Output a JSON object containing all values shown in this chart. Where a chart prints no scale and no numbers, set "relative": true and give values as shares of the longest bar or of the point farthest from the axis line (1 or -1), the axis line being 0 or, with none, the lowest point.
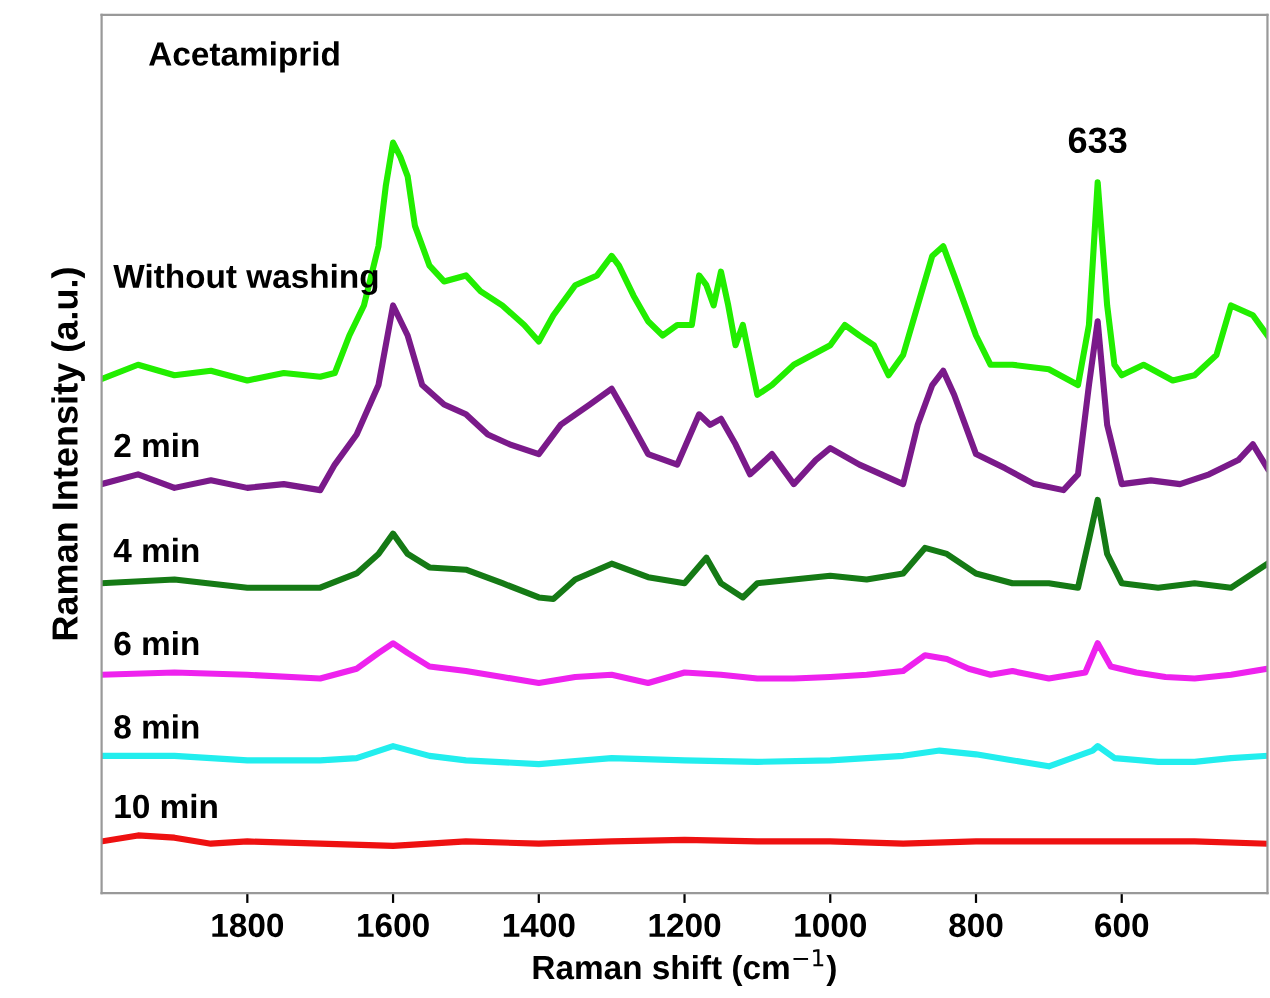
{
  "chart_data": {
    "type": "line",
    "relative": true,
    "xlabel": "Raman shift (cm$^{−1}$)",
    "ylabel": "Raman Intensity (a.u.)",
    "xlim": [
      2000,
      400
    ],
    "xticks": [
      1800,
      1600,
      1400,
      1200,
      1000,
      800,
      600
    ],
    "grid": false,
    "legend": false,
    "marker": "none",
    "line_style": "solid",
    "annotations": [
      "Acetamiprid",
      {
        "text": "633",
        "x": 633,
        "y": 0.947
      }
    ],
    "series": [
      {
        "name": "Without washing",
        "color": "#22ee00",
        "x": [
          2000,
          1950,
          1900,
          1850,
          1800,
          1750,
          1700,
          1680,
          1660,
          1640,
          1620,
          1610,
          1600,
          1590,
          1580,
          1570,
          1550,
          1530,
          1500,
          1480,
          1450,
          1420,
          1400,
          1380,
          1350,
          1320,
          1300,
          1290,
          1270,
          1250,
          1230,
          1210,
          1190,
          1180,
          1170,
          1160,
          1150,
          1140,
          1130,
          1120,
          1100,
          1080,
          1050,
          1000,
          980,
          960,
          940,
          920,
          900,
          880,
          860,
          845,
          830,
          800,
          780,
          750,
          700,
          660,
          645,
          633,
          620,
          610,
          600,
          570,
          530,
          500,
          470,
          450,
          420,
          400
        ],
        "values": [
          0.685,
          0.704,
          0.69,
          0.696,
          0.683,
          0.693,
          0.688,
          0.693,
          0.743,
          0.783,
          0.862,
          0.942,
          1,
          0.981,
          0.955,
          0.889,
          0.836,
          0.815,
          0.823,
          0.802,
          0.783,
          0.757,
          0.735,
          0.77,
          0.81,
          0.823,
          0.849,
          0.836,
          0.796,
          0.762,
          0.743,
          0.757,
          0.757,
          0.823,
          0.81,
          0.783,
          0.828,
          0.783,
          0.73,
          0.757,
          0.664,
          0.677,
          0.704,
          0.73,
          0.757,
          0.743,
          0.73,
          0.69,
          0.717,
          0.783,
          0.849,
          0.862,
          0.823,
          0.743,
          0.704,
          0.704,
          0.698,
          0.677,
          0.757,
          0.947,
          0.783,
          0.704,
          0.69,
          0.704,
          0.683,
          0.69,
          0.717,
          0.783,
          0.77,
          0.743
        ]
      },
      {
        "name": "2 min",
        "color": "#7a1a8a",
        "x": [
          2000,
          1950,
          1900,
          1850,
          1800,
          1750,
          1700,
          1680,
          1650,
          1620,
          1600,
          1580,
          1560,
          1530,
          1500,
          1470,
          1440,
          1400,
          1370,
          1330,
          1300,
          1280,
          1250,
          1210,
          1180,
          1165,
          1150,
          1130,
          1110,
          1080,
          1050,
          1020,
          1000,
          960,
          930,
          900,
          880,
          860,
          845,
          830,
          800,
          760,
          720,
          680,
          660,
          645,
          633,
          620,
          600,
          560,
          520,
          480,
          440,
          420,
          400
        ],
        "values": [
          0.545,
          0.558,
          0.54,
          0.55,
          0.54,
          0.545,
          0.537,
          0.571,
          0.611,
          0.677,
          0.783,
          0.743,
          0.677,
          0.651,
          0.638,
          0.611,
          0.598,
          0.585,
          0.624,
          0.651,
          0.672,
          0.638,
          0.585,
          0.571,
          0.638,
          0.624,
          0.632,
          0.598,
          0.558,
          0.585,
          0.545,
          0.577,
          0.593,
          0.571,
          0.558,
          0.545,
          0.624,
          0.677,
          0.696,
          0.664,
          0.585,
          0.566,
          0.545,
          0.537,
          0.558,
          0.677,
          0.762,
          0.624,
          0.545,
          0.55,
          0.545,
          0.558,
          0.577,
          0.598,
          0.566
        ]
      },
      {
        "name": "4 min",
        "color": "#157a15",
        "x": [
          2000,
          1900,
          1800,
          1700,
          1650,
          1620,
          1600,
          1580,
          1550,
          1500,
          1450,
          1400,
          1380,
          1350,
          1300,
          1250,
          1200,
          1170,
          1150,
          1120,
          1100,
          1050,
          1000,
          950,
          900,
          870,
          840,
          800,
          750,
          700,
          660,
          645,
          633,
          620,
          600,
          550,
          500,
          450,
          400
        ],
        "values": [
          0.413,
          0.418,
          0.407,
          0.407,
          0.426,
          0.452,
          0.479,
          0.452,
          0.434,
          0.431,
          0.413,
          0.394,
          0.392,
          0.418,
          0.439,
          0.421,
          0.413,
          0.447,
          0.413,
          0.394,
          0.413,
          0.418,
          0.423,
          0.418,
          0.426,
          0.46,
          0.452,
          0.426,
          0.413,
          0.413,
          0.407,
          0.471,
          0.524,
          0.452,
          0.413,
          0.407,
          0.413,
          0.407,
          0.439
        ]
      },
      {
        "name": "6 min",
        "color": "#ee22ee",
        "x": [
          2000,
          1900,
          1800,
          1700,
          1650,
          1620,
          1600,
          1580,
          1550,
          1500,
          1450,
          1400,
          1350,
          1300,
          1250,
          1200,
          1150,
          1100,
          1050,
          1000,
          950,
          900,
          870,
          840,
          810,
          780,
          750,
          700,
          650,
          633,
          615,
          580,
          540,
          500,
          450,
          400
        ],
        "values": [
          0.291,
          0.294,
          0.291,
          0.286,
          0.299,
          0.32,
          0.333,
          0.32,
          0.302,
          0.296,
          0.288,
          0.28,
          0.288,
          0.291,
          0.28,
          0.294,
          0.291,
          0.286,
          0.286,
          0.288,
          0.291,
          0.296,
          0.317,
          0.312,
          0.299,
          0.291,
          0.296,
          0.286,
          0.294,
          0.333,
          0.302,
          0.294,
          0.288,
          0.286,
          0.291,
          0.299
        ]
      },
      {
        "name": "8 min",
        "color": "#22eeee",
        "x": [
          2000,
          1900,
          1800,
          1700,
          1650,
          1600,
          1550,
          1500,
          1400,
          1300,
          1200,
          1100,
          1000,
          900,
          850,
          800,
          700,
          640,
          633,
          610,
          550,
          500,
          450,
          400
        ],
        "values": [
          0.183,
          0.183,
          0.177,
          0.177,
          0.18,
          0.196,
          0.183,
          0.177,
          0.172,
          0.18,
          0.177,
          0.175,
          0.177,
          0.183,
          0.19,
          0.185,
          0.169,
          0.19,
          0.196,
          0.18,
          0.175,
          0.175,
          0.18,
          0.183
        ]
      },
      {
        "name": "10 min",
        "color": "#ee1111",
        "x": [
          2000,
          1950,
          1900,
          1850,
          1800,
          1700,
          1600,
          1500,
          1400,
          1300,
          1200,
          1100,
          1000,
          900,
          800,
          700,
          600,
          500,
          400
        ],
        "values": [
          0.069,
          0.077,
          0.074,
          0.066,
          0.069,
          0.066,
          0.063,
          0.069,
          0.066,
          0.069,
          0.071,
          0.069,
          0.069,
          0.066,
          0.069,
          0.069,
          0.069,
          0.069,
          0.066
        ]
      }
    ]
  }
}
